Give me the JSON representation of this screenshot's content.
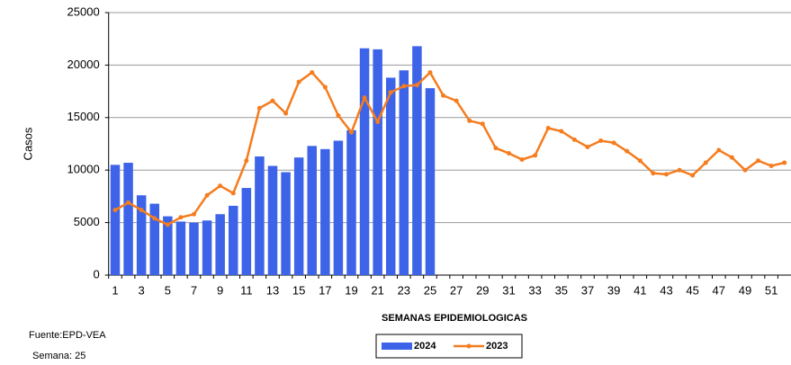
{
  "chart_data": {
    "type": "bar",
    "y_label": "Casos",
    "x_label": "SEMANAS EPIDEMIOLOGICAS",
    "source": "Fuente:EPD-VEA",
    "week_note": "Semana: 25",
    "categories": [
      1,
      null,
      3,
      null,
      5,
      null,
      7,
      null,
      9,
      null,
      11,
      null,
      13,
      null,
      15,
      null,
      17,
      null,
      19,
      null,
      21,
      null,
      23,
      null,
      25,
      null,
      27,
      null,
      29,
      null,
      31,
      null,
      33,
      null,
      35,
      null,
      37,
      null,
      39,
      null,
      41,
      null,
      43,
      null,
      45,
      null,
      47,
      null,
      49,
      null,
      51,
      null
    ],
    "ylim": [
      0,
      25000
    ],
    "yticks": [
      0,
      5000,
      10000,
      15000,
      20000,
      25000
    ],
    "grid": true,
    "legend": "bottom",
    "series": [
      {
        "name": "2024",
        "type": "bar",
        "color": "#3d64e8",
        "values": [
          10500,
          10700,
          7600,
          6800,
          5600,
          5100,
          5000,
          5200,
          5800,
          6600,
          8300,
          11300,
          10400,
          9800,
          11200,
          12300,
          12000,
          12800,
          13800,
          21600,
          21500,
          18800,
          19500,
          21800,
          17800,
          null,
          null,
          null,
          null,
          null,
          null,
          null,
          null,
          null,
          null,
          null,
          null,
          null,
          null,
          null,
          null,
          null,
          null,
          null,
          null,
          null,
          null,
          null,
          null,
          null,
          null,
          null
        ]
      },
      {
        "name": "2023",
        "type": "line",
        "color": "#f57c1f",
        "values": [
          6200,
          6900,
          6200,
          5400,
          4800,
          5500,
          5800,
          7600,
          8500,
          7800,
          10900,
          15900,
          16600,
          15400,
          18400,
          19300,
          17900,
          15200,
          13600,
          16900,
          14600,
          17400,
          18000,
          18100,
          19300,
          17100,
          16600,
          14700,
          14400,
          12100,
          11600,
          11000,
          11400,
          14000,
          13700,
          12900,
          12200,
          12800,
          12600,
          11800,
          10900,
          9700,
          9600,
          10000,
          9500,
          10700,
          11900,
          11200,
          10000,
          10900,
          10400,
          10700
        ]
      }
    ]
  }
}
